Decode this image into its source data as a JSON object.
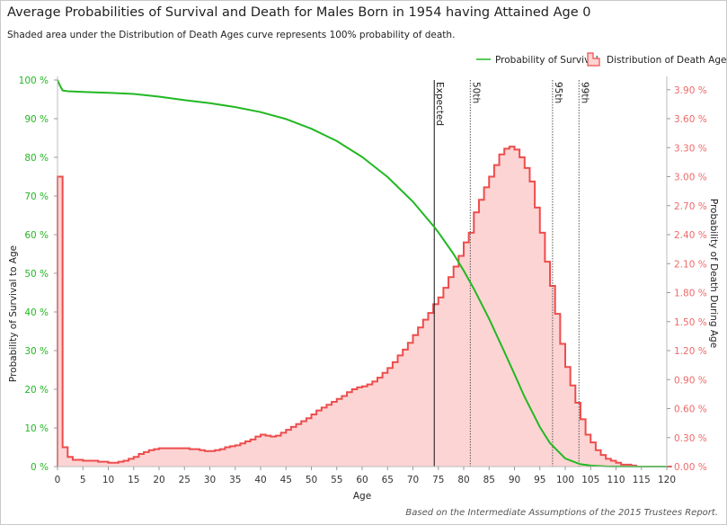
{
  "header": {
    "title": "Average Probabilities of Survival and Death for Males Born in 1954 having Attained Age 0",
    "subtitle": "Shaded area under the Distribution of Death Ages curve represents 100% probability of death.",
    "source": "Based on the Intermediate Assumptions of the 2015 Trustees Report."
  },
  "colors": {
    "survival": "#22b822",
    "death_line": "#ee4c4c",
    "death_fill": "#fdd4d4",
    "right_axis": "#ee6a6a",
    "left_axis": "#22b822"
  },
  "chart_data": {
    "type": "line",
    "xlabel": "Age",
    "ylabel_left": "Probability of Survival to Age",
    "ylabel_right": "Probability of Death During Age",
    "xlim": [
      0,
      120
    ],
    "ylim_left": [
      0,
      100
    ],
    "ylim_right": [
      0,
      4.0
    ],
    "x_ticks": [
      "0",
      "5",
      "10",
      "15",
      "20",
      "25",
      "30",
      "35",
      "40",
      "45",
      "50",
      "55",
      "60",
      "65",
      "70",
      "75",
      "80",
      "85",
      "90",
      "95",
      "100",
      "105",
      "110",
      "115",
      "120"
    ],
    "y_left_ticks": [
      "0 %",
      "10 %",
      "20 %",
      "30 %",
      "40 %",
      "50 %",
      "60 %",
      "70 %",
      "80 %",
      "90 %",
      "100 %"
    ],
    "y_right_ticks": [
      "0.00 %",
      "0.30 %",
      "0.60 %",
      "0.90 %",
      "1.20 %",
      "1.50 %",
      "1.80 %",
      "2.10 %",
      "2.40 %",
      "2.70 %",
      "3.00 %",
      "3.30 %",
      "3.60 %",
      "3.90 %"
    ],
    "legend": [
      "Probability of Survival",
      "Distribution of Death Ages"
    ],
    "legend_position": "top-right",
    "series": [
      {
        "name": "Probability of Survival",
        "unit": "percent",
        "points": [
          [
            0,
            100
          ],
          [
            0.5,
            98.5
          ],
          [
            1,
            97.3
          ],
          [
            2,
            97.1
          ],
          [
            5,
            96.9
          ],
          [
            10,
            96.7
          ],
          [
            15,
            96.4
          ],
          [
            20,
            95.7
          ],
          [
            25,
            94.8
          ],
          [
            30,
            94.0
          ],
          [
            35,
            93.0
          ],
          [
            40,
            91.7
          ],
          [
            45,
            89.9
          ],
          [
            50,
            87.4
          ],
          [
            55,
            84.2
          ],
          [
            60,
            80.1
          ],
          [
            65,
            74.9
          ],
          [
            70,
            68.5
          ],
          [
            74,
            62.3
          ],
          [
            75,
            60.6
          ],
          [
            78,
            55.0
          ],
          [
            80,
            50.7
          ],
          [
            82,
            46.0
          ],
          [
            85,
            38.2
          ],
          [
            88,
            29.7
          ],
          [
            90,
            23.9
          ],
          [
            92,
            18.0
          ],
          [
            95,
            10.2
          ],
          [
            97,
            6.1
          ],
          [
            100,
            2.1
          ],
          [
            103,
            0.6
          ],
          [
            105,
            0.25
          ],
          [
            108,
            0.06
          ],
          [
            110,
            0.02
          ],
          [
            115,
            0.0
          ],
          [
            120,
            0.0
          ]
        ]
      },
      {
        "name": "Distribution of Death Ages",
        "unit": "percent",
        "values": [
          3.0,
          0.2,
          0.1,
          0.07,
          0.07,
          0.06,
          0.06,
          0.06,
          0.05,
          0.05,
          0.04,
          0.04,
          0.05,
          0.06,
          0.08,
          0.1,
          0.13,
          0.15,
          0.17,
          0.18,
          0.19,
          0.19,
          0.19,
          0.19,
          0.19,
          0.19,
          0.18,
          0.18,
          0.17,
          0.16,
          0.16,
          0.17,
          0.18,
          0.2,
          0.21,
          0.22,
          0.24,
          0.26,
          0.28,
          0.31,
          0.33,
          0.32,
          0.31,
          0.32,
          0.35,
          0.38,
          0.41,
          0.44,
          0.47,
          0.5,
          0.54,
          0.58,
          0.61,
          0.64,
          0.67,
          0.7,
          0.73,
          0.77,
          0.8,
          0.82,
          0.83,
          0.85,
          0.88,
          0.92,
          0.97,
          1.02,
          1.08,
          1.15,
          1.21,
          1.28,
          1.36,
          1.44,
          1.52,
          1.59,
          1.68,
          1.75,
          1.85,
          1.96,
          2.07,
          2.18,
          2.32,
          2.42,
          2.63,
          2.76,
          2.89,
          3.0,
          3.12,
          3.23,
          3.29,
          3.31,
          3.28,
          3.2,
          3.09,
          2.95,
          2.68,
          2.42,
          2.12,
          1.87,
          1.58,
          1.27,
          1.03,
          0.84,
          0.66,
          0.49,
          0.33,
          0.25,
          0.17,
          0.12,
          0.08,
          0.06,
          0.04,
          0.02,
          0.02,
          0.01,
          0.0,
          0.0,
          0.0,
          0.0,
          0.0,
          0.0,
          0.0
        ]
      }
    ],
    "markers": [
      {
        "label": "Expected",
        "age": 74.2,
        "style": "solid"
      },
      {
        "label": "50th",
        "age": 81.3,
        "style": "dotted"
      },
      {
        "label": "95th",
        "age": 97.5,
        "style": "dotted"
      },
      {
        "label": "99th",
        "age": 102.7,
        "style": "dotted"
      }
    ]
  }
}
